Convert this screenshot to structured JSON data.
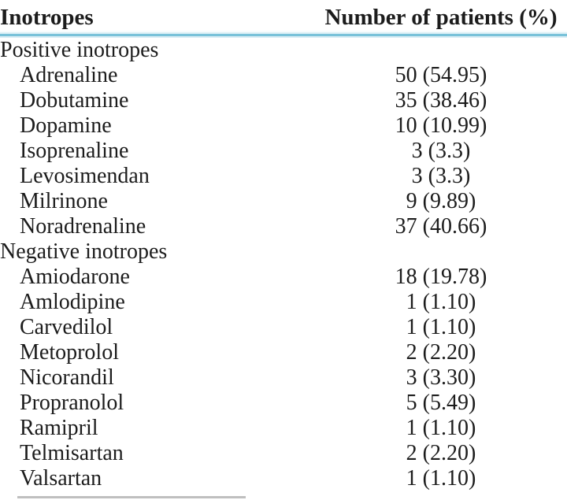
{
  "table": {
    "columns": [
      {
        "label": "Inotropes"
      },
      {
        "label": "Number of patients (%)"
      }
    ],
    "sections": [
      {
        "label": "Positive inotropes",
        "rows": [
          {
            "drug": "Adrenaline",
            "count": 50,
            "percent": 54.95,
            "value": "50 (54.95)"
          },
          {
            "drug": "Dobutamine",
            "count": 35,
            "percent": 38.46,
            "value": "35 (38.46)"
          },
          {
            "drug": "Dopamine",
            "count": 10,
            "percent": 10.99,
            "value": "10 (10.99)"
          },
          {
            "drug": "Isoprenaline",
            "count": 3,
            "percent": 3.3,
            "value": "3 (3.3)"
          },
          {
            "drug": "Levosimendan",
            "count": 3,
            "percent": 3.3,
            "value": "3 (3.3)"
          },
          {
            "drug": "Milrinone",
            "count": 9,
            "percent": 9.89,
            "value": "9 (9.89)"
          },
          {
            "drug": "Noradrenaline",
            "count": 37,
            "percent": 40.66,
            "value": "37 (40.66)"
          }
        ]
      },
      {
        "label": "Negative inotropes",
        "rows": [
          {
            "drug": "Amiodarone",
            "count": 18,
            "percent": 19.78,
            "value": "18 (19.78)"
          },
          {
            "drug": "Amlodipine",
            "count": 1,
            "percent": 1.1,
            "value": "1 (1.10)"
          },
          {
            "drug": "Carvedilol",
            "count": 1,
            "percent": 1.1,
            "value": "1 (1.10)"
          },
          {
            "drug": "Metoprolol",
            "count": 2,
            "percent": 2.2,
            "value": "2 (2.20)"
          },
          {
            "drug": "Nicorandil",
            "count": 3,
            "percent": 3.3,
            "value": "3 (3.30)"
          },
          {
            "drug": "Propranolol",
            "count": 5,
            "percent": 5.49,
            "value": "5 (5.49)"
          },
          {
            "drug": "Ramipril",
            "count": 1,
            "percent": 1.1,
            "value": "1 (1.10)"
          },
          {
            "drug": "Telmisartan",
            "count": 2,
            "percent": 2.2,
            "value": "2 (2.20)"
          },
          {
            "drug": "Valsartan",
            "count": 1,
            "percent": 1.1,
            "value": "1 (1.10)"
          }
        ]
      }
    ],
    "colors": {
      "header_separator_accent": "#79c2d9",
      "header_separator_light": "#ddf0f6",
      "text": "#1c1c1c",
      "bottom_rule": "#bfbfbf"
    }
  }
}
